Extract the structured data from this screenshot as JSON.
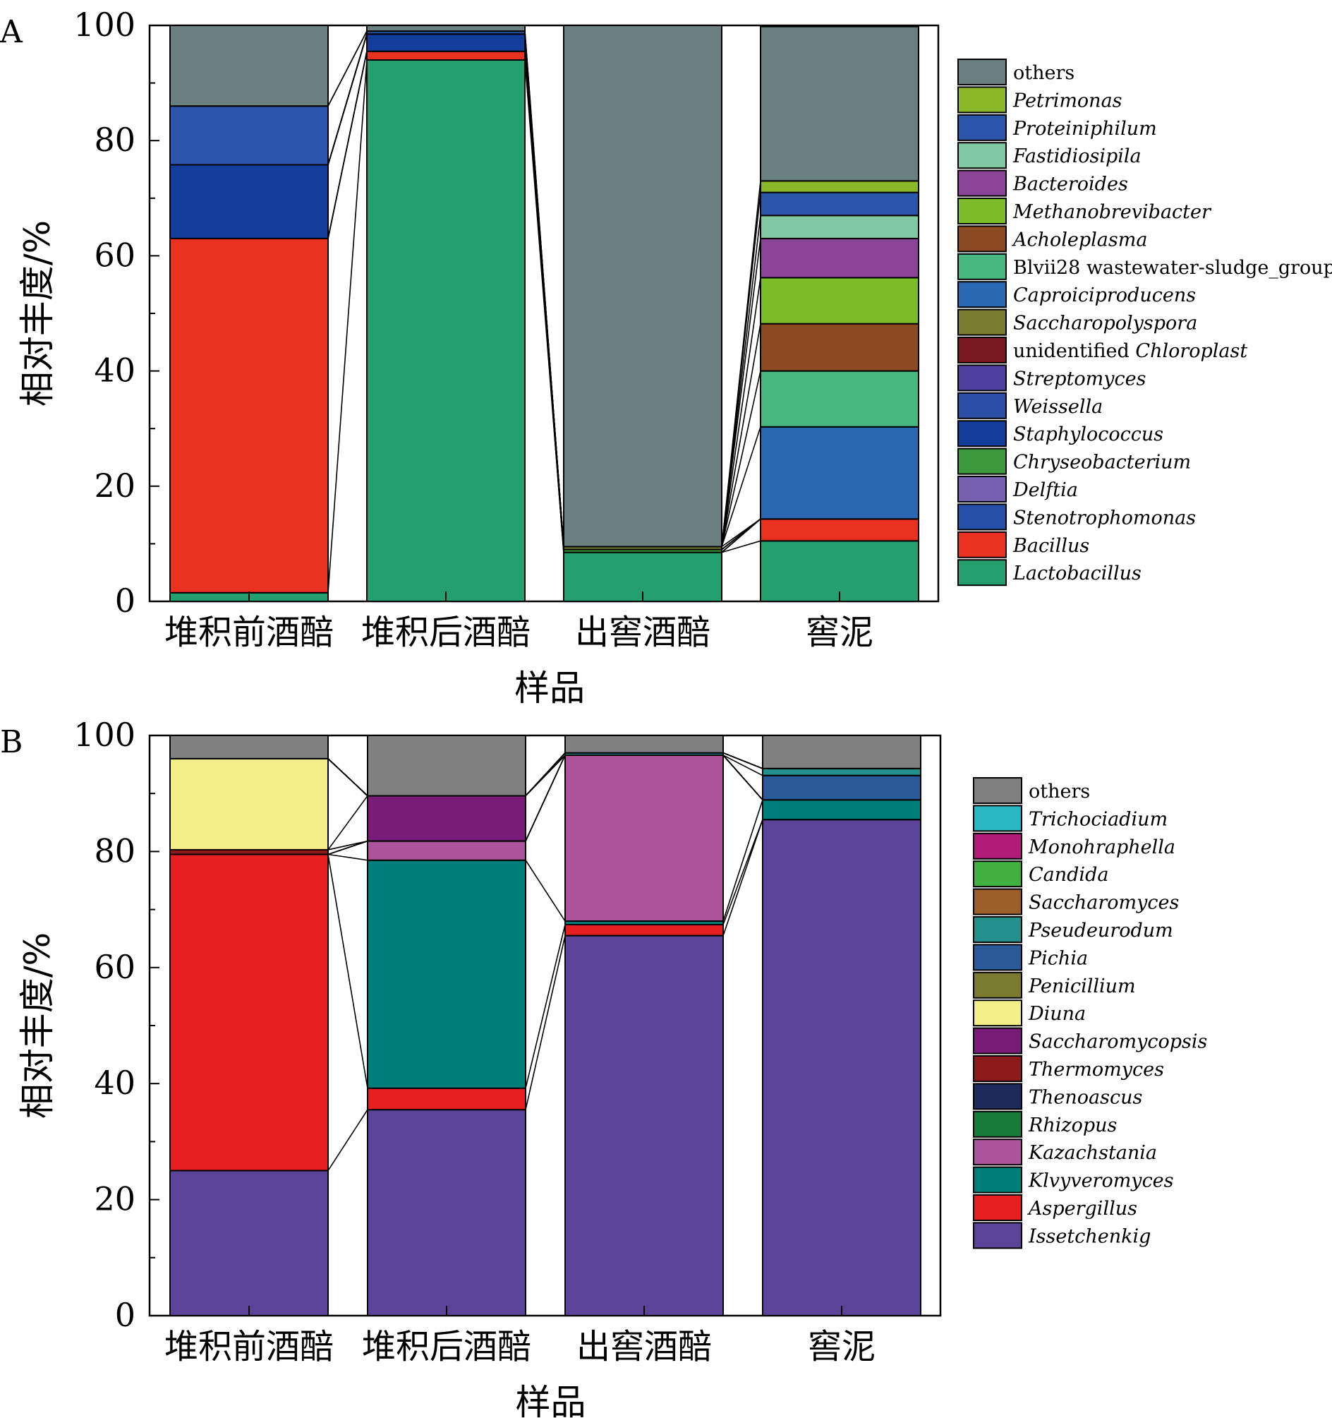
{
  "chart_data": [
    {
      "panel_label": "A",
      "type": "bar",
      "stacked": true,
      "categories": [
        "堆积前酒醅",
        "堆积后酒醅",
        "出窖酒醅",
        "窖泥"
      ],
      "xlabel": "样品",
      "ylabel": "相对丰度/%",
      "ylim": [
        0,
        100
      ],
      "yticks": [
        "0",
        "20",
        "40",
        "60",
        "80",
        "100"
      ],
      "legend_position": "right",
      "series": [
        {
          "name": "Lactobacillus",
          "prefix": "",
          "label": "Lactobacillus",
          "italic": true,
          "color": "#23a06e",
          "values": [
            1.5,
            94,
            8.5,
            10.5
          ]
        },
        {
          "name": "Bacillus",
          "prefix": "",
          "label": "Bacillus",
          "italic": true,
          "color": "#e8311f",
          "values": [
            61.5,
            1.5,
            0,
            3.8
          ]
        },
        {
          "name": "Stenotrophomonas",
          "prefix": "",
          "label": "Stenotrophomonas",
          "italic": true,
          "color": "#2650a8",
          "values": [
            0,
            0,
            0,
            0
          ]
        },
        {
          "name": "Delftia",
          "prefix": "",
          "label": "Delftia",
          "italic": true,
          "color": "#7660b0",
          "values": [
            0,
            0,
            0,
            0
          ]
        },
        {
          "name": "Chryseobacterium",
          "prefix": "",
          "label": "Chryseobacterium",
          "italic": true,
          "color": "#3c9a3c",
          "values": [
            0,
            0,
            0.5,
            0
          ]
        },
        {
          "name": "Staphylococcus",
          "prefix": "",
          "label": "Staphylococcus",
          "italic": true,
          "color": "#123d9a",
          "values": [
            12.8,
            3,
            0,
            0
          ]
        },
        {
          "name": "Weissella",
          "prefix": "",
          "label": "Weissella",
          "italic": true,
          "color": "#2a4da6",
          "values": [
            0,
            0,
            0,
            0
          ]
        },
        {
          "name": "Streptomyces",
          "prefix": "",
          "label": "Streptomyces",
          "italic": true,
          "color": "#5040a0",
          "values": [
            0,
            0,
            0,
            0
          ]
        },
        {
          "name": "unidentified Chloroplast",
          "prefix": "unidentified ",
          "label": "Chloroplast",
          "italic": true,
          "color": "#7a1820",
          "values": [
            0,
            0,
            0,
            0
          ]
        },
        {
          "name": "Saccharopolyspora",
          "prefix": "",
          "label": "Saccharopolyspora",
          "italic": true,
          "color": "#7a7a30",
          "values": [
            0,
            0,
            0.5,
            0
          ]
        },
        {
          "name": "Caproiciproducens",
          "prefix": "",
          "label": "Caproiciproducens",
          "italic": true,
          "color": "#2a68b4",
          "values": [
            0,
            0,
            0,
            16
          ]
        },
        {
          "name": "Blvii28 wastewater-sludge_group",
          "prefix": "",
          "label": "Blvii28 wastewater-sludge_group",
          "italic": false,
          "color": "#48b880",
          "values": [
            0,
            0,
            0,
            9.7
          ]
        },
        {
          "name": "Acholeplasma",
          "prefix": "",
          "label": "Acholeplasma",
          "italic": true,
          "color": "#8c4a22",
          "values": [
            0,
            0,
            0,
            8.2
          ]
        },
        {
          "name": "Methanobrevibacter",
          "prefix": "",
          "label": "Methanobrevibacter",
          "italic": true,
          "color": "#7cbc28",
          "values": [
            0,
            0,
            0,
            8
          ]
        },
        {
          "name": "Bacteroides",
          "prefix": "",
          "label": "Bacteroides",
          "italic": true,
          "color": "#8a4598",
          "values": [
            0,
            0,
            0,
            6.8
          ]
        },
        {
          "name": "Fastidiosipila",
          "prefix": "",
          "label": "Fastidiosipila",
          "italic": true,
          "color": "#80c8a4",
          "values": [
            0,
            0,
            0,
            4
          ]
        },
        {
          "name": "Proteiniphilum",
          "prefix": "",
          "label": "Proteiniphilum",
          "italic": true,
          "color": "#2a55a8",
          "values": [
            10.2,
            0.5,
            0,
            4
          ]
        },
        {
          "name": "Petrimonas",
          "prefix": "",
          "label": "Petrimonas",
          "italic": true,
          "color": "#8ab828",
          "values": [
            0,
            0,
            0,
            2
          ]
        },
        {
          "name": "others",
          "prefix": "",
          "label": "others",
          "italic": false,
          "color": "#6a8080",
          "values": [
            14,
            1,
            90.5,
            26.8
          ]
        }
      ]
    },
    {
      "panel_label": "B",
      "type": "bar",
      "stacked": true,
      "categories": [
        "堆积前酒醅",
        "堆积后酒醅",
        "出窖酒醅",
        "窖泥"
      ],
      "xlabel": "样品",
      "ylabel": "相对丰度/%",
      "ylim": [
        0,
        100
      ],
      "yticks": [
        "0",
        "20",
        "40",
        "60",
        "80",
        "100"
      ],
      "legend_position": "right",
      "series": [
        {
          "name": "Issetchenkig",
          "prefix": "",
          "label": "Issetchenkig",
          "italic": true,
          "color": "#5b4398",
          "values": [
            25,
            35.5,
            65.5,
            85.5
          ]
        },
        {
          "name": "Aspergillus",
          "prefix": "",
          "label": "Aspergillus",
          "italic": true,
          "color": "#e51f1f",
          "values": [
            54.5,
            3.7,
            1.9,
            0
          ]
        },
        {
          "name": "Klvyveromyces",
          "prefix": "",
          "label": "Klvyveromyces",
          "italic": true,
          "color": "#007f7a",
          "values": [
            0,
            39.3,
            0.6,
            3.4
          ]
        },
        {
          "name": "Kazachstania",
          "prefix": "",
          "label": "Kazachstania",
          "italic": true,
          "color": "#aa559c",
          "values": [
            0,
            3.3,
            28.6,
            0
          ]
        },
        {
          "name": "Rhizopus",
          "prefix": "",
          "label": "Rhizopus",
          "italic": true,
          "color": "#1a7a3c",
          "values": [
            0,
            0,
            0,
            0
          ]
        },
        {
          "name": "Thenoascus",
          "prefix": "",
          "label": "Thenoascus",
          "italic": true,
          "color": "#1c2a5c",
          "values": [
            0,
            0,
            0,
            0
          ]
        },
        {
          "name": "Thermomyces",
          "prefix": "",
          "label": "Thermomyces",
          "italic": true,
          "color": "#8c1a1a",
          "values": [
            0.8,
            0,
            0,
            0
          ]
        },
        {
          "name": "Saccharomycopsis",
          "prefix": "",
          "label": "Saccharomycopsis",
          "italic": true,
          "color": "#781c78",
          "values": [
            0,
            7.8,
            0,
            0
          ]
        },
        {
          "name": "Diuna",
          "prefix": "",
          "label": "Diuna",
          "italic": true,
          "color": "#f2ee88",
          "values": [
            15.7,
            0,
            0,
            0
          ]
        },
        {
          "name": "Penicillium",
          "prefix": "",
          "label": "Penicillium",
          "italic": true,
          "color": "#7a7a30",
          "values": [
            0,
            0,
            0,
            0
          ]
        },
        {
          "name": "Pichia",
          "prefix": "",
          "label": "Pichia",
          "italic": true,
          "color": "#2a5a98",
          "values": [
            0,
            0,
            0,
            4.2
          ]
        },
        {
          "name": "Pseudeurodum",
          "prefix": "",
          "label": "Pseudeurodum",
          "italic": true,
          "color": "#23908c",
          "values": [
            0,
            0,
            0.4,
            1.2
          ]
        },
        {
          "name": "Saccharomyces",
          "prefix": "",
          "label": "Saccharomyces",
          "italic": true,
          "color": "#9a5f2a",
          "values": [
            0,
            0,
            0,
            0
          ]
        },
        {
          "name": "Candida",
          "prefix": "",
          "label": "Candida",
          "italic": true,
          "color": "#40b040",
          "values": [
            0,
            0,
            0,
            0
          ]
        },
        {
          "name": "Monohraphella",
          "prefix": "",
          "label": "Monohraphella",
          "italic": true,
          "color": "#b01c78",
          "values": [
            0,
            0,
            0,
            0
          ]
        },
        {
          "name": "Trichociadium",
          "prefix": "",
          "label": "Trichociadium",
          "italic": true,
          "color": "#2ab8c0",
          "values": [
            0,
            0,
            0,
            0
          ]
        },
        {
          "name": "others",
          "prefix": "",
          "label": "others",
          "italic": false,
          "color": "#808080",
          "values": [
            4,
            10.4,
            3,
            5.7
          ]
        }
      ]
    }
  ]
}
